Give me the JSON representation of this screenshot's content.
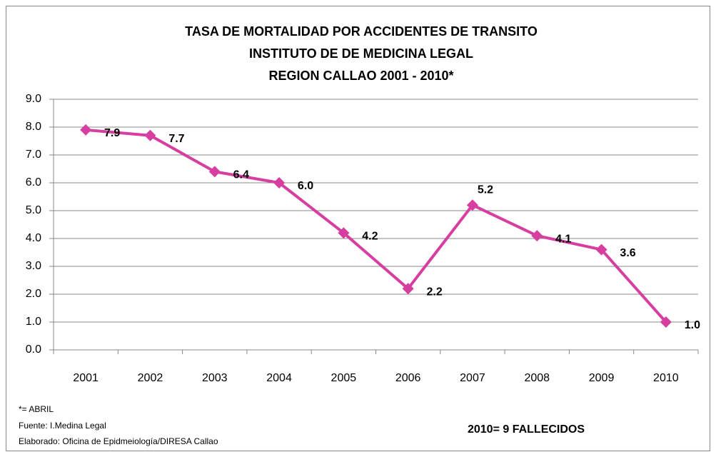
{
  "chart_data": {
    "type": "line",
    "title": [
      "TASA DE MORTALIDAD  POR ACCIDENTES DE TRANSITO",
      "INSTITUTO DE DE MEDICINA LEGAL",
      "REGION  CALLAO 2001 - 2010*"
    ],
    "categories": [
      "2001",
      "2002",
      "2003",
      "2004",
      "2005",
      "2006",
      "2007",
      "2008",
      "2009",
      "2010"
    ],
    "values": [
      7.9,
      7.7,
      6.4,
      6.0,
      4.2,
      2.2,
      5.2,
      4.1,
      3.6,
      1.0
    ],
    "value_labels": [
      "7.9",
      "7.7",
      "6.4",
      "6.0",
      "4.2",
      "2.2",
      "5.2",
      "4.1",
      "3.6",
      "1.0"
    ],
    "color": "#d63fa0",
    "ylim": [
      0,
      9
    ],
    "yticks": [
      {
        "value": 0,
        "label": "0.0"
      },
      {
        "value": 1,
        "label": "1.0"
      },
      {
        "value": 2,
        "label": "2.0"
      },
      {
        "value": 3,
        "label": "3.0"
      },
      {
        "value": 4,
        "label": "4.0"
      },
      {
        "value": 5,
        "label": "5.0"
      },
      {
        "value": 6,
        "label": "6.0"
      },
      {
        "value": 7,
        "label": "7.0"
      },
      {
        "value": 8,
        "label": "8.0"
      },
      {
        "value": 9,
        "label": "9.0"
      }
    ],
    "grid": true,
    "annotations": [
      "*= ABRIL",
      "Fuente: I.Medina Legal",
      "Elaborado: Oficina de Epidmeiología/DIRESA Callao",
      "2010= 9 FALLECIDOS"
    ]
  }
}
